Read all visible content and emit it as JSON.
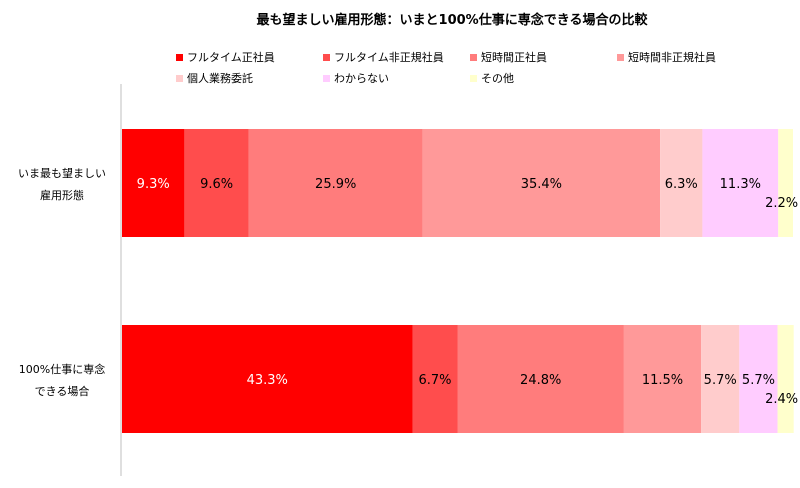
{
  "chart_data": {
    "type": "bar",
    "orientation": "horizontal",
    "stacked": "percent",
    "title": "最も望ましい雇用形態：いまと100%仕事に専念できる場合の比較",
    "categories": [
      [
        "いま最も望ましい",
        "雇用形態"
      ],
      [
        "100%仕事に専念",
        "できる場合"
      ]
    ],
    "series": [
      {
        "name": "フルタイム正社員",
        "color": "#FF0000",
        "values": [
          9.3,
          43.3
        ],
        "labels": [
          "9.3%",
          "43.3%"
        ]
      },
      {
        "name": "フルタイム非正規社員",
        "color": "#FF4D4D",
        "values": [
          9.6,
          6.7
        ],
        "labels": [
          "9.6%",
          "6.7%"
        ]
      },
      {
        "name": "短時間正社員",
        "color": "#FF7C7C",
        "values": [
          25.9,
          24.8
        ],
        "labels": [
          "25.9%",
          "24.8%"
        ]
      },
      {
        "name": "短時間非正規社員",
        "color": "#FF9999",
        "values": [
          35.4,
          11.5
        ],
        "labels": [
          "35.4%",
          "11.5%"
        ]
      },
      {
        "name": "個人業務委託",
        "color": "#FFCCCC",
        "values": [
          6.3,
          5.7
        ],
        "labels": [
          "6.3%",
          "5.7%"
        ]
      },
      {
        "name": "わからない",
        "color": "#FFCCFF",
        "values": [
          11.3,
          5.7
        ],
        "labels": [
          "11.3%",
          "5.7%"
        ]
      },
      {
        "name": "その他",
        "color": "#FFFFCC",
        "values": [
          2.2,
          2.4
        ],
        "labels": [
          "2.2%",
          "2.4%"
        ]
      }
    ],
    "xlim": [
      0,
      100
    ],
    "grid": false,
    "legend_position": "top"
  }
}
